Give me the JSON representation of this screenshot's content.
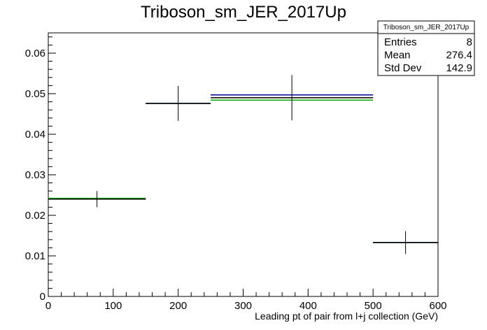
{
  "chart_data": {
    "type": "histogram",
    "title": "Triboson_sm_JER_2017Up",
    "xlabel": "Leading pt of pair from l+j collection (GeV)",
    "ylabel": "",
    "xlim": [
      0,
      600
    ],
    "ylim": [
      0,
      0.065
    ],
    "x_ticks": [
      0,
      100,
      200,
      300,
      400,
      500,
      600
    ],
    "y_ticks": [
      "0",
      "0.01",
      "0.02",
      "0.03",
      "0.04",
      "0.05",
      "0.06"
    ],
    "y_tick_values": [
      0,
      0.01,
      0.02,
      0.03,
      0.04,
      0.05,
      0.06
    ],
    "bins": [
      {
        "xlow": 0,
        "xhigh": 150,
        "x": 75,
        "y": 0.024,
        "err": 0.002
      },
      {
        "xlow": 150,
        "xhigh": 250,
        "x": 200,
        "y": 0.0476,
        "err": 0.0043
      },
      {
        "xlow": 250,
        "xhigh": 500,
        "x": 375,
        "y": 0.049,
        "err": 0.0056
      },
      {
        "xlow": 500,
        "xhigh": 600,
        "x": 550,
        "y": 0.0133,
        "err": 0.0028
      }
    ],
    "series": [
      {
        "color": "#000000",
        "values": [
          0.024,
          0.0476,
          0.049,
          0.0133
        ]
      },
      {
        "color": "#000099",
        "values": [
          0.024,
          0.0476,
          0.0497,
          0.0133
        ]
      },
      {
        "color": "#00aa00",
        "values": [
          0.0242,
          0.0476,
          0.0484,
          0.0133
        ]
      }
    ],
    "stats": {
      "name": "Triboson_sm_JER_2017Up",
      "rows": [
        {
          "label": "Entries",
          "value": "8"
        },
        {
          "label": "Mean",
          "value": "276.4"
        },
        {
          "label": "Std Dev",
          "value": "142.9"
        }
      ]
    }
  }
}
